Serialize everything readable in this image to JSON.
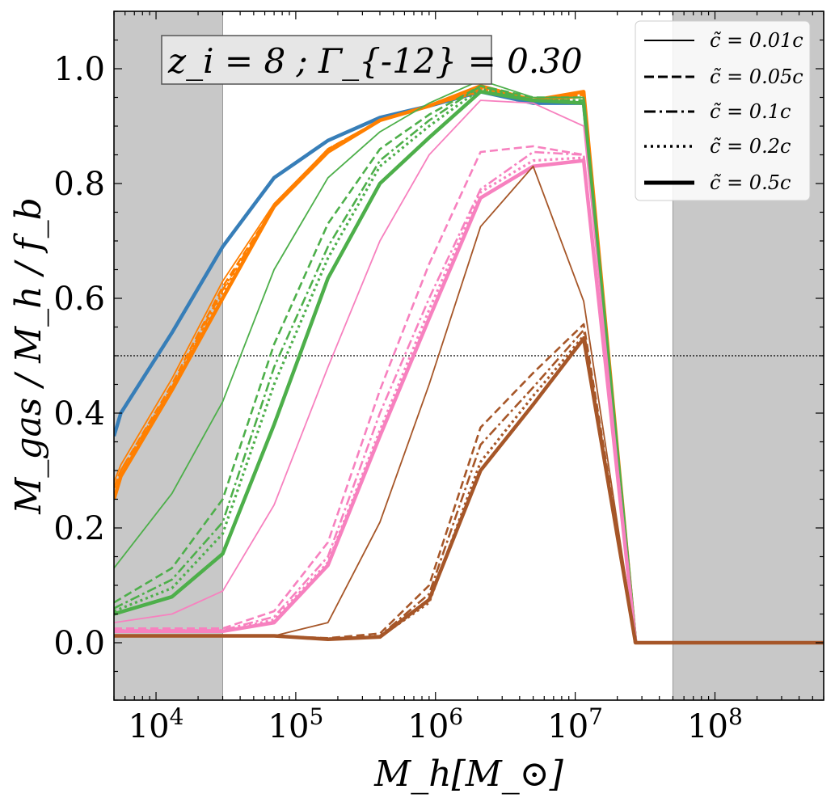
{
  "chart_data": {
    "type": "line",
    "annotation": "z_i = 8 ; Γ_{-12} = 0.30",
    "xlabel": "M_h[M_⊙]",
    "ylabel": "M_gas / M_h / f_b",
    "xscale": "log",
    "xlim": [
      5000,
      600000000
    ],
    "ylim": [
      -0.1,
      1.1
    ],
    "xticks": [
      10000,
      100000,
      1000000,
      10000000,
      100000000
    ],
    "xtick_labels": [
      "10^4",
      "10^5",
      "10^6",
      "10^7",
      "10^8"
    ],
    "yticks": [
      0.0,
      0.2,
      0.4,
      0.6,
      0.8,
      1.0
    ],
    "ytick_labels": [
      "0.0",
      "0.2",
      "0.4",
      "0.6",
      "0.8",
      "1.0"
    ],
    "reference_line": {
      "y": 0.5,
      "style": "dotted"
    },
    "shaded_x_ranges": [
      [
        5000,
        30000
      ],
      [
        50000000,
        600000000
      ]
    ],
    "grid": false,
    "legend": {
      "placement": "top-right",
      "entries": [
        {
          "label": "c̃ = 0.01c",
          "style": "solid-thin"
        },
        {
          "label": "c̃ = 0.05c",
          "style": "dashed"
        },
        {
          "label": "c̃ = 0.1c",
          "style": "dashdot"
        },
        {
          "label": "c̃ = 0.2c",
          "style": "dotted"
        },
        {
          "label": "c̃ = 0.5c",
          "style": "solid-thick"
        }
      ]
    },
    "series": [
      {
        "color": "#377eb8",
        "style": "solid-thick",
        "x": [
          5000,
          5600,
          13000,
          30000,
          70000,
          170000,
          400000,
          900000,
          2100000,
          5000000,
          11500000,
          27000000
        ],
        "y": [
          0.36,
          0.4,
          0.54,
          0.69,
          0.81,
          0.875,
          0.915,
          0.935,
          0.96,
          0.94,
          0.94,
          0.0
        ]
      },
      {
        "color": "#ff7f00",
        "style": "solid-thin",
        "x": [
          5000,
          5600,
          13000,
          30000,
          70000,
          170000,
          400000,
          900000,
          2100000,
          5000000,
          11500000,
          27000000
        ],
        "y": [
          0.28,
          0.31,
          0.46,
          0.63,
          0.765,
          0.86,
          0.91,
          0.935,
          0.96,
          0.945,
          0.95,
          0.0
        ]
      },
      {
        "color": "#ff7f00",
        "style": "dashed",
        "x": [
          5000,
          5600,
          13000,
          30000,
          70000,
          170000,
          400000,
          900000,
          2100000,
          5000000,
          11500000,
          27000000
        ],
        "y": [
          0.27,
          0.3,
          0.45,
          0.62,
          0.76,
          0.86,
          0.91,
          0.935,
          0.96,
          0.945,
          0.955,
          0.0
        ]
      },
      {
        "color": "#ff7f00",
        "style": "dashdot",
        "x": [
          5000,
          5600,
          13000,
          30000,
          70000,
          170000,
          400000,
          900000,
          2100000,
          5000000,
          11500000,
          27000000
        ],
        "y": [
          0.27,
          0.3,
          0.445,
          0.615,
          0.76,
          0.86,
          0.91,
          0.935,
          0.965,
          0.945,
          0.955,
          0.0
        ]
      },
      {
        "color": "#ff7f00",
        "style": "dotted",
        "x": [
          5000,
          5600,
          13000,
          30000,
          70000,
          170000,
          400000,
          900000,
          2100000,
          5000000,
          11500000,
          27000000
        ],
        "y": [
          0.26,
          0.29,
          0.44,
          0.61,
          0.76,
          0.855,
          0.91,
          0.935,
          0.965,
          0.945,
          0.955,
          0.0
        ]
      },
      {
        "color": "#ff7f00",
        "style": "solid-thick",
        "x": [
          5000,
          5600,
          13000,
          30000,
          70000,
          170000,
          400000,
          900000,
          2100000,
          5000000,
          11500000,
          27000000
        ],
        "y": [
          0.25,
          0.29,
          0.44,
          0.6,
          0.76,
          0.855,
          0.91,
          0.935,
          0.97,
          0.945,
          0.96,
          0.0
        ]
      },
      {
        "color": "#4daf4a",
        "style": "solid-thin",
        "x": [
          5000,
          13000,
          30000,
          70000,
          170000,
          400000,
          900000,
          2100000,
          5000000,
          11500000,
          27000000
        ],
        "y": [
          0.13,
          0.26,
          0.42,
          0.65,
          0.81,
          0.89,
          0.94,
          0.98,
          0.95,
          0.95,
          0.0
        ]
      },
      {
        "color": "#4daf4a",
        "style": "dashed",
        "x": [
          5000,
          13000,
          30000,
          70000,
          170000,
          400000,
          900000,
          2100000,
          5000000,
          11500000,
          27000000
        ],
        "y": [
          0.07,
          0.13,
          0.25,
          0.52,
          0.73,
          0.86,
          0.92,
          0.97,
          0.95,
          0.95,
          0.0
        ]
      },
      {
        "color": "#4daf4a",
        "style": "dashdot",
        "x": [
          5000,
          13000,
          30000,
          70000,
          170000,
          400000,
          900000,
          2100000,
          5000000,
          11500000,
          27000000
        ],
        "y": [
          0.06,
          0.11,
          0.21,
          0.48,
          0.69,
          0.84,
          0.91,
          0.97,
          0.945,
          0.945,
          0.0
        ]
      },
      {
        "color": "#4daf4a",
        "style": "dotted",
        "x": [
          5000,
          13000,
          30000,
          70000,
          170000,
          400000,
          900000,
          2100000,
          5000000,
          11500000,
          27000000
        ],
        "y": [
          0.055,
          0.095,
          0.19,
          0.45,
          0.67,
          0.83,
          0.9,
          0.965,
          0.945,
          0.945,
          0.0
        ]
      },
      {
        "color": "#4daf4a",
        "style": "solid-thick",
        "x": [
          5000,
          13000,
          30000,
          70000,
          170000,
          400000,
          900000,
          2100000,
          5000000,
          11500000,
          27000000
        ],
        "y": [
          0.05,
          0.08,
          0.155,
          0.38,
          0.635,
          0.8,
          0.88,
          0.96,
          0.945,
          0.94,
          0.0
        ]
      },
      {
        "color": "#f781bf",
        "style": "solid-thin",
        "x": [
          5000,
          13000,
          30000,
          70000,
          170000,
          400000,
          900000,
          2100000,
          5000000,
          11500000,
          27000000
        ],
        "y": [
          0.035,
          0.05,
          0.09,
          0.24,
          0.48,
          0.7,
          0.85,
          0.945,
          0.94,
          0.9,
          0.0
        ]
      },
      {
        "color": "#f781bf",
        "style": "dashed",
        "x": [
          5000,
          13000,
          30000,
          70000,
          170000,
          400000,
          900000,
          2100000,
          5000000,
          11500000,
          27000000
        ],
        "y": [
          0.025,
          0.025,
          0.025,
          0.055,
          0.175,
          0.44,
          0.66,
          0.855,
          0.865,
          0.85,
          0.0
        ]
      },
      {
        "color": "#f781bf",
        "style": "dashdot",
        "x": [
          5000,
          13000,
          30000,
          70000,
          170000,
          400000,
          900000,
          2100000,
          5000000,
          11500000,
          27000000
        ],
        "y": [
          0.022,
          0.022,
          0.022,
          0.045,
          0.15,
          0.4,
          0.6,
          0.79,
          0.855,
          0.85,
          0.0
        ]
      },
      {
        "color": "#f781bf",
        "style": "dotted",
        "x": [
          5000,
          13000,
          30000,
          70000,
          170000,
          400000,
          900000,
          2100000,
          5000000,
          11500000,
          27000000
        ],
        "y": [
          0.02,
          0.02,
          0.02,
          0.04,
          0.14,
          0.37,
          0.58,
          0.785,
          0.84,
          0.845,
          0.0
        ]
      },
      {
        "color": "#f781bf",
        "style": "solid-thick",
        "x": [
          5000,
          13000,
          30000,
          70000,
          170000,
          400000,
          900000,
          2100000,
          5000000,
          11500000,
          27000000
        ],
        "y": [
          0.02,
          0.02,
          0.02,
          0.035,
          0.135,
          0.36,
          0.565,
          0.775,
          0.83,
          0.84,
          0.0
        ]
      },
      {
        "color": "#a65628",
        "style": "solid-thin",
        "x": [
          5000,
          13000,
          30000,
          70000,
          170000,
          400000,
          900000,
          2100000,
          5000000,
          11500000,
          27000000
        ],
        "y": [
          0.012,
          0.012,
          0.012,
          0.012,
          0.035,
          0.21,
          0.45,
          0.725,
          0.83,
          0.595,
          0.0
        ]
      },
      {
        "color": "#a65628",
        "style": "dashed",
        "x": [
          5000,
          13000,
          30000,
          70000,
          170000,
          400000,
          900000,
          2100000,
          5000000,
          11500000,
          27000000
        ],
        "y": [
          0.012,
          0.012,
          0.012,
          0.012,
          0.008,
          0.016,
          0.1,
          0.375,
          0.47,
          0.555,
          0.0
        ]
      },
      {
        "color": "#a65628",
        "style": "dashdot",
        "x": [
          5000,
          13000,
          30000,
          70000,
          170000,
          400000,
          900000,
          2100000,
          5000000,
          11500000,
          27000000
        ],
        "y": [
          0.012,
          0.012,
          0.012,
          0.012,
          0.007,
          0.012,
          0.085,
          0.345,
          0.445,
          0.545,
          0.0
        ]
      },
      {
        "color": "#a65628",
        "style": "dotted",
        "x": [
          5000,
          13000,
          30000,
          70000,
          170000,
          400000,
          900000,
          2100000,
          5000000,
          11500000,
          27000000
        ],
        "y": [
          0.012,
          0.012,
          0.012,
          0.012,
          0.007,
          0.01,
          0.07,
          0.315,
          0.43,
          0.535,
          0.0
        ]
      },
      {
        "color": "#a65628",
        "style": "solid-thick",
        "x": [
          5000,
          13000,
          30000,
          70000,
          170000,
          400000,
          900000,
          2100000,
          5000000,
          11500000,
          27000000,
          600000000
        ],
        "y": [
          0.012,
          0.012,
          0.012,
          0.012,
          0.006,
          0.01,
          0.075,
          0.3,
          0.415,
          0.53,
          0.0,
          0.0
        ]
      }
    ]
  }
}
